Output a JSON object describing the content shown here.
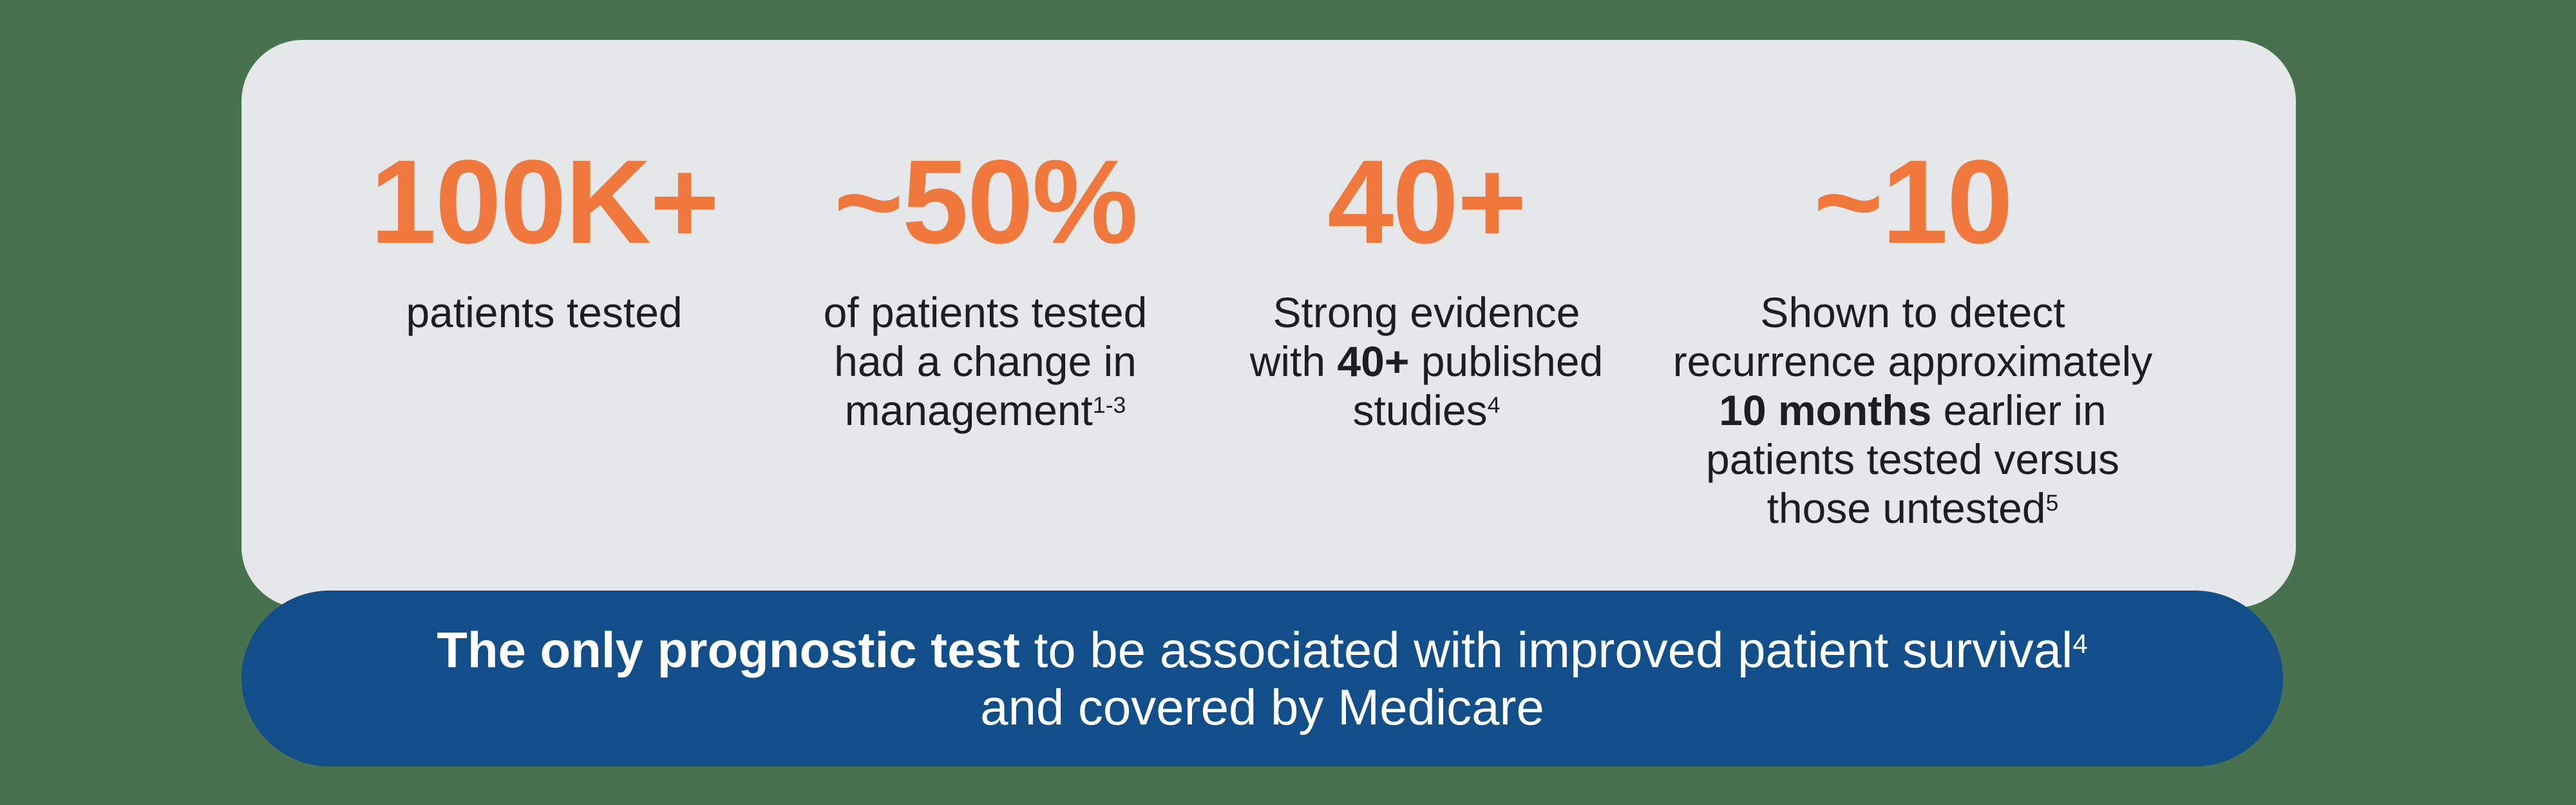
{
  "colors": {
    "background_green": "#47714F",
    "card_gray": "#E6E7E9",
    "accent_orange": "#F0783C",
    "banner_blue": "#124E89",
    "text_dark": "#1E1E20",
    "text_white": "#FFFFFF"
  },
  "stats": {
    "stat1": {
      "value": "100K+",
      "line1": "patients tested"
    },
    "stat2": {
      "value": "~50%",
      "line1": "of patients tested",
      "line2": "had a change in",
      "line3": "management",
      "line3_sup": "1-3"
    },
    "stat3": {
      "value": "40+",
      "line1": "Strong evidence",
      "line2_pre": "with ",
      "line2_bold": "40+",
      "line2_post": " published",
      "line3": "studies",
      "line3_sup": "4"
    },
    "stat4": {
      "value": "~10",
      "line1": "Shown to detect",
      "line2": "recurrence approximately",
      "line3_bold": "10 months",
      "line3_post": " earlier in",
      "line4": "patients tested versus",
      "line5": "those untested",
      "line5_sup": "5"
    }
  },
  "banner": {
    "line1_bold": "The only prognostic test",
    "line1_rest": " to be associated with improved patient survival",
    "line1_sup": "4",
    "line2": "and covered by Medicare"
  }
}
